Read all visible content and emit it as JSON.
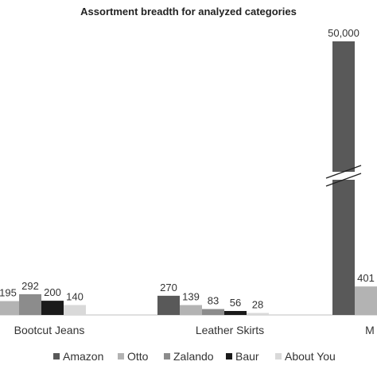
{
  "chart_data": {
    "type": "bar",
    "title": "Assortment breadth for analyzed categories",
    "categories": [
      "Bootcut Jeans",
      "Leather Skirts",
      "M"
    ],
    "series": [
      {
        "name": "Amazon",
        "values": [
          null,
          270,
          50000
        ],
        "labels": [
          "",
          "270",
          "50,000"
        ],
        "color": "#595959"
      },
      {
        "name": "Otto",
        "values": [
          195,
          139,
          401
        ],
        "labels": [
          "195",
          "139",
          "401"
        ],
        "color": "#b3b3b3"
      },
      {
        "name": "Zalando",
        "values": [
          292,
          83,
          null
        ],
        "labels": [
          "292",
          "83",
          ""
        ],
        "color": "#8c8c8c"
      },
      {
        "name": "Baur",
        "values": [
          200,
          56,
          null
        ],
        "labels": [
          "200",
          "56",
          ""
        ],
        "color": "#1a1a1a"
      },
      {
        "name": "About You",
        "values": [
          140,
          28,
          null
        ],
        "labels": [
          "140",
          "28",
          ""
        ],
        "color": "#d9d9d9"
      }
    ],
    "axis_break": true,
    "grid": false,
    "legend": "bottom"
  }
}
